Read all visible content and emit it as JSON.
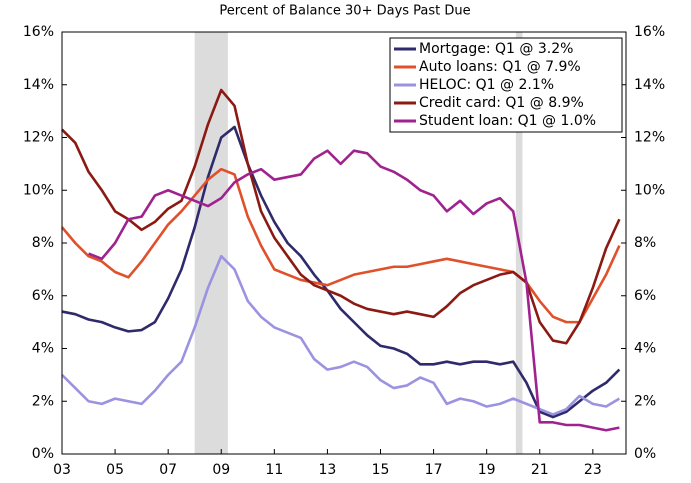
{
  "chart_data": {
    "type": "line",
    "subtitle": "Percent of Balance 30+ Days Past Due",
    "x": [
      2003,
      2003.5,
      2004,
      2004.5,
      2005,
      2005.5,
      2006,
      2006.5,
      2007,
      2007.5,
      2008,
      2008.5,
      2009,
      2009.5,
      2010,
      2010.5,
      2011,
      2011.5,
      2012,
      2012.5,
      2013,
      2013.5,
      2014,
      2014.5,
      2015,
      2015.5,
      2016,
      2016.5,
      2017,
      2017.5,
      2018,
      2018.5,
      2019,
      2019.5,
      2020,
      2020.5,
      2021,
      2021.5,
      2022,
      2022.5,
      2023,
      2023.5,
      2024
    ],
    "series": [
      {
        "name": "Mortgage: Q1 @ 3.2%",
        "color": "#2e2a6b",
        "values": [
          5.4,
          5.3,
          5.1,
          5.0,
          4.8,
          4.65,
          4.7,
          5.0,
          5.9,
          7.0,
          8.6,
          10.5,
          12.0,
          12.4,
          11.0,
          9.8,
          8.8,
          8.0,
          7.5,
          6.8,
          6.2,
          5.5,
          5.0,
          4.5,
          4.1,
          4.0,
          3.8,
          3.4,
          3.4,
          3.5,
          3.4,
          3.5,
          3.5,
          3.4,
          3.5,
          2.7,
          1.6,
          1.4,
          1.6,
          2.0,
          2.4,
          2.7,
          3.2
        ]
      },
      {
        "name": "Auto loans: Q1 @ 7.9%",
        "color": "#e0502a",
        "values": [
          8.6,
          8.0,
          7.5,
          7.3,
          6.9,
          6.7,
          7.3,
          8.0,
          8.7,
          9.2,
          9.8,
          10.4,
          10.8,
          10.6,
          9.0,
          7.9,
          7.0,
          6.8,
          6.6,
          6.5,
          6.4,
          6.6,
          6.8,
          6.9,
          7.0,
          7.1,
          7.1,
          7.2,
          7.3,
          7.4,
          7.3,
          7.2,
          7.1,
          7.0,
          6.9,
          6.5,
          5.8,
          5.2,
          5.0,
          5.0,
          5.9,
          6.8,
          7.9
        ]
      },
      {
        "name": "HELOC: Q1 @ 2.1%",
        "color": "#9b93e0",
        "values": [
          3.0,
          2.5,
          2.0,
          1.9,
          2.1,
          2.0,
          1.9,
          2.4,
          3.0,
          3.5,
          4.8,
          6.3,
          7.5,
          7.0,
          5.8,
          5.2,
          4.8,
          4.6,
          4.4,
          3.6,
          3.2,
          3.3,
          3.5,
          3.3,
          2.8,
          2.5,
          2.6,
          2.9,
          2.7,
          1.9,
          2.1,
          2.0,
          1.8,
          1.9,
          2.1,
          1.9,
          1.7,
          1.5,
          1.7,
          2.2,
          1.9,
          1.8,
          2.1
        ]
      },
      {
        "name": "Credit card: Q1 @ 8.9%",
        "color": "#8b1a12",
        "values": [
          12.3,
          11.8,
          10.7,
          10.0,
          9.2,
          8.9,
          8.5,
          8.8,
          9.3,
          9.6,
          10.9,
          12.5,
          13.8,
          13.2,
          11.0,
          9.2,
          8.2,
          7.5,
          6.8,
          6.4,
          6.2,
          6.0,
          5.7,
          5.5,
          5.4,
          5.3,
          5.4,
          5.3,
          5.2,
          5.6,
          6.1,
          6.4,
          6.6,
          6.8,
          6.9,
          6.5,
          5.0,
          4.3,
          4.2,
          5.0,
          6.3,
          7.8,
          8.9
        ]
      },
      {
        "name": "Student loan: Q1 @ 1.0%",
        "color": "#a0228f",
        "values": [
          null,
          null,
          7.6,
          7.4,
          8.0,
          8.9,
          9.0,
          9.8,
          10.0,
          9.8,
          9.6,
          9.4,
          9.7,
          10.3,
          10.6,
          10.8,
          10.4,
          10.5,
          10.6,
          11.2,
          11.5,
          11.0,
          11.5,
          11.4,
          10.9,
          10.7,
          10.4,
          10.0,
          9.8,
          9.2,
          9.6,
          9.1,
          9.5,
          9.7,
          9.2,
          6.5,
          1.2,
          1.2,
          1.1,
          1.1,
          1.0,
          0.9,
          1.0
        ]
      }
    ],
    "shaded_periods": [
      [
        2008,
        2009.25
      ],
      [
        2020.1,
        2020.35
      ]
    ],
    "shade_color": "#dcdcdc",
    "xlim": [
      2003,
      2024.25
    ],
    "xticks": [
      {
        "value": 2003,
        "label": "03"
      },
      {
        "value": 2005,
        "label": "05"
      },
      {
        "value": 2007,
        "label": "07"
      },
      {
        "value": 2009,
        "label": "09"
      },
      {
        "value": 2011,
        "label": "11"
      },
      {
        "value": 2013,
        "label": "13"
      },
      {
        "value": 2015,
        "label": "15"
      },
      {
        "value": 2017,
        "label": "17"
      },
      {
        "value": 2019,
        "label": "19"
      },
      {
        "value": 2021,
        "label": "21"
      },
      {
        "value": 2023,
        "label": "23"
      }
    ],
    "ylim": [
      0,
      16
    ],
    "yticks": [
      {
        "value": 0,
        "label": "0%"
      },
      {
        "value": 2,
        "label": "2%"
      },
      {
        "value": 4,
        "label": "4%"
      },
      {
        "value": 6,
        "label": "6%"
      },
      {
        "value": 8,
        "label": "8%"
      },
      {
        "value": 10,
        "label": "10%"
      },
      {
        "value": 12,
        "label": "12%"
      },
      {
        "value": 14,
        "label": "14%"
      },
      {
        "value": 16,
        "label": "16%"
      }
    ],
    "y2lim": [
      0,
      16
    ],
    "y2ticks": [
      {
        "value": 0,
        "label": "0%"
      },
      {
        "value": 2,
        "label": "2%"
      },
      {
        "value": 4,
        "label": "4%"
      },
      {
        "value": 6,
        "label": "6%"
      },
      {
        "value": 8,
        "label": "8%"
      },
      {
        "value": 10,
        "label": "10%"
      },
      {
        "value": 12,
        "label": "12%"
      },
      {
        "value": 14,
        "label": "14%"
      },
      {
        "value": 16,
        "label": "16%"
      }
    ],
    "legend": "top-right"
  }
}
